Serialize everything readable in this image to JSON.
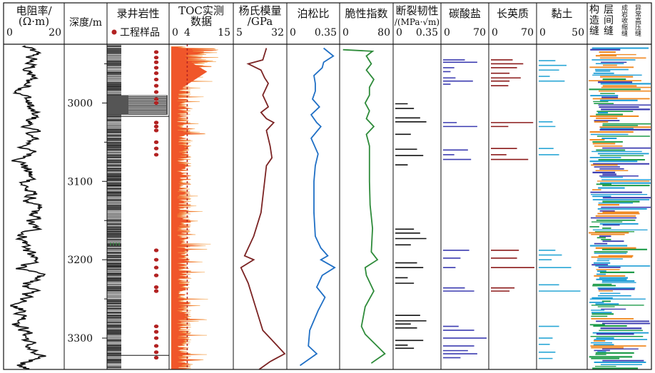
{
  "chart_data": {
    "type": "well-log",
    "depth_axis": {
      "label": "深度/m",
      "ticks": [
        3000,
        3100,
        3200,
        3300
      ],
      "range": [
        2925,
        3340
      ]
    },
    "tracks": [
      {
        "id": "resistivity",
        "title": [
          "电阻率/",
          "(Ω·m)"
        ],
        "scale": [
          0,
          20
        ],
        "scale_labels": [
          "0",
          "20"
        ],
        "color": "#111111"
      },
      {
        "id": "lithology",
        "title": [
          "录井岩性"
        ],
        "legend": "工程样品",
        "legend_color": "#b22222"
      },
      {
        "id": "toc",
        "title": [
          "TOC实测",
          "数据"
        ],
        "scale": [
          0,
          15
        ],
        "scale_labels": [
          "0",
          "4",
          "15"
        ],
        "cutoff": 4,
        "color": "#f0562a"
      },
      {
        "id": "youngs",
        "title": [
          "杨氏模量",
          "/GPa"
        ],
        "scale": [
          5,
          32
        ],
        "scale_labels": [
          "5",
          "32"
        ],
        "color": "#7b2323"
      },
      {
        "id": "poisson",
        "title": [
          "泊松比"
        ],
        "scale": [
          0,
          0.35
        ],
        "scale_labels": [
          "0",
          "0.35"
        ],
        "color": "#1f6fc5"
      },
      {
        "id": "brittleness",
        "title": [
          "脆性指数"
        ],
        "scale": [
          0,
          80
        ],
        "scale_labels": [
          "0",
          "80"
        ],
        "color": "#2e8b3a"
      },
      {
        "id": "toughness",
        "title": [
          "断裂韧性",
          "/(MPa·√m)"
        ],
        "scale": [
          0,
          0.35
        ],
        "scale_labels": [
          "0",
          "0.35"
        ],
        "color": "#111111"
      },
      {
        "id": "carbonate",
        "title": [
          "碳酸盐"
        ],
        "scale": [
          0,
          70
        ],
        "scale_labels": [
          "0",
          "70"
        ],
        "color": "#3b3bb0"
      },
      {
        "id": "feldspar",
        "title": [
          "长英质"
        ],
        "scale": [
          0,
          70
        ],
        "scale_labels": [
          "0",
          "70"
        ],
        "color": "#8b1a1a"
      },
      {
        "id": "clay",
        "title": [
          "黏土"
        ],
        "scale": [
          0,
          50
        ],
        "scale_labels": [
          "0",
          "50"
        ],
        "color": "#2aa7d6"
      },
      {
        "id": "fractures",
        "title": [
          "构",
          "造",
          "缝"
        ],
        "sub_titles": [
          [
            "层",
            "间",
            "缝"
          ],
          [
            "成岩收缩缝"
          ],
          [
            "异常高压缝"
          ]
        ],
        "colors": [
          "#3b3bb0",
          "#1e9c4a",
          "#f08a24",
          "#1f9ed6"
        ]
      }
    ],
    "samples_depth": [
      2935,
      2942,
      2948,
      2955,
      2962,
      2970,
      2978,
      2986,
      2995,
      3000,
      3025,
      3030,
      3035,
      3050,
      3058,
      3066,
      3188,
      3200,
      3210,
      3220,
      3235,
      3240,
      3285,
      3292,
      3300,
      3310,
      3318,
      3325
    ],
    "youngs": [
      [
        2930,
        22
      ],
      [
        2945,
        20
      ],
      [
        2950,
        12
      ],
      [
        2958,
        19
      ],
      [
        2968,
        21
      ],
      [
        2975,
        23
      ],
      [
        2990,
        20
      ],
      [
        3005,
        23
      ],
      [
        3012,
        19
      ],
      [
        3020,
        22
      ],
      [
        3025,
        26
      ],
      [
        3035,
        22
      ],
      [
        3055,
        24
      ],
      [
        3070,
        25
      ],
      [
        3080,
        22
      ],
      [
        3100,
        21
      ],
      [
        3140,
        19
      ],
      [
        3170,
        15
      ],
      [
        3195,
        10
      ],
      [
        3200,
        15
      ],
      [
        3210,
        8
      ],
      [
        3230,
        12
      ],
      [
        3260,
        16
      ],
      [
        3290,
        20
      ],
      [
        3310,
        28
      ],
      [
        3320,
        32
      ],
      [
        3330,
        24
      ],
      [
        3340,
        18
      ]
    ],
    "poisson": [
      [
        2930,
        0.25
      ],
      [
        2940,
        0.32
      ],
      [
        2948,
        0.25
      ],
      [
        2955,
        0.24
      ],
      [
        2965,
        0.18
      ],
      [
        2975,
        0.19
      ],
      [
        2985,
        0.19
      ],
      [
        2995,
        0.17
      ],
      [
        3005,
        0.22
      ],
      [
        3015,
        0.16
      ],
      [
        3025,
        0.2
      ],
      [
        3030,
        0.23
      ],
      [
        3045,
        0.16
      ],
      [
        3065,
        0.21
      ],
      [
        3080,
        0.19
      ],
      [
        3100,
        0.18
      ],
      [
        3140,
        0.18
      ],
      [
        3170,
        0.19
      ],
      [
        3185,
        0.23
      ],
      [
        3195,
        0.28
      ],
      [
        3200,
        0.23
      ],
      [
        3210,
        0.33
      ],
      [
        3220,
        0.24
      ],
      [
        3235,
        0.2
      ],
      [
        3248,
        0.26
      ],
      [
        3265,
        0.21
      ],
      [
        3290,
        0.15
      ],
      [
        3310,
        0.14
      ],
      [
        3320,
        0.2
      ],
      [
        3335,
        0.08
      ]
    ],
    "brittleness": [
      [
        2932,
        2
      ],
      [
        2934,
        50
      ],
      [
        2940,
        40
      ],
      [
        2950,
        48
      ],
      [
        2958,
        40
      ],
      [
        2970,
        52
      ],
      [
        2980,
        45
      ],
      [
        2990,
        45
      ],
      [
        3000,
        38
      ],
      [
        3010,
        45
      ],
      [
        3020,
        40
      ],
      [
        3030,
        52
      ],
      [
        3040,
        40
      ],
      [
        3055,
        45
      ],
      [
        3070,
        45
      ],
      [
        3100,
        45
      ],
      [
        3130,
        46
      ],
      [
        3160,
        50
      ],
      [
        3190,
        48
      ],
      [
        3200,
        58
      ],
      [
        3210,
        38
      ],
      [
        3220,
        40
      ],
      [
        3240,
        52
      ],
      [
        3260,
        38
      ],
      [
        3285,
        32
      ],
      [
        3295,
        38
      ],
      [
        3320,
        70
      ],
      [
        3332,
        48
      ]
    ],
    "toughness": [
      3001,
      3007,
      3019,
      3024,
      3040,
      3059,
      3067,
      3079,
      3161,
      3166,
      3173,
      3181,
      3204,
      3210,
      3223,
      3230,
      3271,
      3278,
      3282,
      3287,
      3303,
      3309,
      3313
    ],
    "carbonate": [
      [
        2945,
        35
      ],
      [
        2948,
        55
      ],
      [
        2955,
        18
      ],
      [
        2960,
        12
      ],
      [
        2968,
        20
      ],
      [
        2972,
        48
      ],
      [
        2976,
        12
      ],
      [
        3025,
        22
      ],
      [
        3030,
        55
      ],
      [
        3060,
        40
      ],
      [
        3066,
        18
      ],
      [
        3072,
        45
      ],
      [
        3188,
        42
      ],
      [
        3198,
        28
      ],
      [
        3210,
        20
      ],
      [
        3236,
        35
      ],
      [
        3240,
        50
      ],
      [
        3285,
        25
      ],
      [
        3290,
        50
      ],
      [
        3300,
        70
      ],
      [
        3310,
        50
      ],
      [
        3316,
        40
      ],
      [
        3320,
        55
      ],
      [
        3325,
        28
      ]
    ],
    "feldspar": [
      [
        2945,
        35
      ],
      [
        2950,
        52
      ],
      [
        2955,
        42
      ],
      [
        2962,
        30
      ],
      [
        2968,
        48
      ],
      [
        2972,
        30
      ],
      [
        2978,
        28
      ],
      [
        3025,
        68
      ],
      [
        3030,
        28
      ],
      [
        3058,
        42
      ],
      [
        3066,
        25
      ],
      [
        3072,
        60
      ],
      [
        3188,
        45
      ],
      [
        3198,
        42
      ],
      [
        3210,
        70
      ],
      [
        3236,
        38
      ],
      [
        3240,
        30
      ]
    ],
    "clay": [
      [
        2946,
        18
      ],
      [
        2952,
        30
      ],
      [
        2958,
        22
      ],
      [
        2966,
        12
      ],
      [
        2972,
        28
      ],
      [
        3024,
        15
      ],
      [
        3030,
        18
      ],
      [
        3058,
        16
      ],
      [
        3066,
        22
      ],
      [
        3188,
        18
      ],
      [
        3194,
        25
      ],
      [
        3200,
        14
      ],
      [
        3210,
        35
      ],
      [
        3232,
        22
      ],
      [
        3240,
        45
      ],
      [
        3285,
        22
      ],
      [
        3300,
        15
      ],
      [
        3308,
        12
      ],
      [
        3318,
        18
      ],
      [
        3326,
        15
      ]
    ]
  }
}
